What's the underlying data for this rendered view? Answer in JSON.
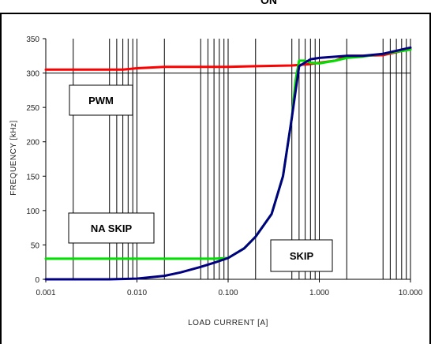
{
  "header": {
    "text": "ON"
  },
  "chart_data": {
    "type": "line",
    "title": "",
    "xlabel": "LOAD CURRENT [A]",
    "ylabel": "FREQUENCY [kHz]",
    "xscale": "log",
    "xlim": [
      0.001,
      10
    ],
    "ylim": [
      0,
      350
    ],
    "xticks": [
      0.001,
      0.01,
      0.1,
      1,
      10
    ],
    "xtick_labels": [
      "0.001",
      "0.010",
      "0.100",
      "1.000",
      "10.000"
    ],
    "yticks": [
      0,
      50,
      100,
      150,
      200,
      250,
      300,
      350
    ],
    "ytick_labels": [
      "0",
      "50",
      "100",
      "150",
      "200",
      "250",
      "300",
      "350"
    ],
    "grid": true,
    "series": [
      {
        "color": "#ff0000",
        "x": [
          0.001,
          0.005,
          0.007,
          0.01,
          0.02,
          0.05,
          0.1,
          0.2,
          0.5,
          0.8,
          1.0,
          1.5,
          2.0,
          3.0,
          5.0,
          10.0
        ],
        "y": [
          305,
          305,
          305,
          307,
          309,
          309,
          309,
          310,
          311,
          313,
          315,
          318,
          325,
          325,
          326,
          335
        ]
      },
      {
        "color": "#00e000",
        "x": [
          0.001,
          0.02,
          0.04,
          0.07,
          0.1,
          0.15,
          0.2,
          0.3,
          0.4,
          0.5,
          0.55,
          0.6,
          0.7,
          0.8,
          1.0,
          1.5,
          2.0,
          3.0,
          5.0,
          10.0
        ],
        "y": [
          30,
          30,
          30,
          30,
          31,
          45,
          62,
          95,
          150,
          235,
          290,
          318,
          318,
          315,
          314,
          318,
          322,
          324,
          328,
          334
        ]
      },
      {
        "color": "#000080",
        "x": [
          0.001,
          0.005,
          0.01,
          0.02,
          0.03,
          0.05,
          0.07,
          0.1,
          0.15,
          0.2,
          0.3,
          0.4,
          0.5,
          0.6,
          0.8,
          1.0,
          2.0,
          3.0,
          5.0,
          10.0
        ],
        "y": [
          0,
          0,
          1,
          5,
          10,
          18,
          24,
          31,
          45,
          62,
          95,
          150,
          235,
          310,
          320,
          322,
          325,
          325,
          328,
          337
        ]
      }
    ],
    "annotations": [
      {
        "text": "PWM"
      },
      {
        "text": "NA SKIP"
      },
      {
        "text": "SKIP"
      }
    ],
    "colors": {
      "grid": "#000000",
      "red": "#ff0000",
      "green": "#00e000",
      "navy": "#000080"
    }
  }
}
